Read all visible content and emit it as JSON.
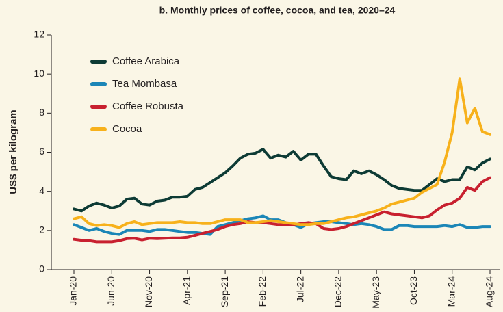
{
  "chart_data": {
    "type": "line",
    "title": "b. Monthly prices of coffee, cocoa, and tea, 2020–24",
    "y_label": "US$ per kilogram",
    "categories": [
      "Jan-20",
      null,
      null,
      null,
      null,
      "Jun-20",
      null,
      null,
      null,
      null,
      "Nov-20",
      null,
      null,
      null,
      null,
      "Apr-21",
      null,
      null,
      null,
      null,
      "Sep-21",
      null,
      null,
      null,
      null,
      "Feb-22",
      null,
      null,
      null,
      null,
      "Jul-22",
      null,
      null,
      null,
      null,
      "Dec-22",
      null,
      null,
      null,
      null,
      "May-23",
      null,
      null,
      null,
      null,
      "Oct-23",
      null,
      null,
      null,
      null,
      "Mar-24",
      null,
      null,
      null,
      null,
      "Aug-24"
    ],
    "series": [
      {
        "name": "Coffee Arabica",
        "color": "#0d3b35",
        "values": [
          3.1,
          3.0,
          3.25,
          3.4,
          3.3,
          3.15,
          3.25,
          3.6,
          3.65,
          3.35,
          3.3,
          3.5,
          3.55,
          3.7,
          3.7,
          3.75,
          4.1,
          4.2,
          4.45,
          4.7,
          4.95,
          5.3,
          5.7,
          5.9,
          5.95,
          6.15,
          5.7,
          5.85,
          5.75,
          6.05,
          5.6,
          5.9,
          5.9,
          5.3,
          4.75,
          4.65,
          4.6,
          5.05,
          4.9,
          5.05,
          4.85,
          4.6,
          4.3,
          4.15,
          4.1,
          4.05,
          4.05,
          4.35,
          4.65,
          4.5,
          4.6,
          4.6,
          5.25,
          5.1,
          5.45,
          5.65
        ]
      },
      {
        "name": "Tea Mombasa",
        "color": "#1b86b7",
        "values": [
          2.3,
          2.15,
          2.0,
          2.1,
          1.95,
          1.85,
          1.8,
          2.0,
          2.0,
          2.0,
          1.95,
          2.05,
          2.05,
          2.0,
          1.95,
          1.9,
          1.9,
          1.85,
          1.8,
          2.2,
          2.3,
          2.4,
          2.5,
          2.6,
          2.65,
          2.75,
          2.55,
          2.55,
          2.4,
          2.3,
          2.15,
          2.35,
          2.4,
          2.45,
          2.45,
          2.4,
          2.35,
          2.3,
          2.35,
          2.3,
          2.2,
          2.05,
          2.05,
          2.25,
          2.25,
          2.2,
          2.2,
          2.2,
          2.2,
          2.25,
          2.2,
          2.3,
          2.15,
          2.15,
          2.2,
          2.2
        ]
      },
      {
        "name": "Coffee Robusta",
        "color": "#c8202f",
        "values": [
          1.55,
          1.5,
          1.48,
          1.42,
          1.42,
          1.42,
          1.48,
          1.58,
          1.6,
          1.52,
          1.6,
          1.58,
          1.6,
          1.62,
          1.62,
          1.65,
          1.75,
          1.85,
          1.95,
          2.05,
          2.2,
          2.3,
          2.35,
          2.45,
          2.4,
          2.4,
          2.35,
          2.3,
          2.3,
          2.3,
          2.35,
          2.4,
          2.35,
          2.1,
          2.05,
          2.1,
          2.2,
          2.35,
          2.5,
          2.65,
          2.8,
          2.95,
          2.85,
          2.8,
          2.75,
          2.7,
          2.65,
          2.75,
          3.05,
          3.3,
          3.4,
          3.65,
          4.2,
          4.05,
          4.5,
          4.7
        ]
      },
      {
        "name": "Cocoa",
        "color": "#f7b11b",
        "values": [
          2.6,
          2.7,
          2.35,
          2.25,
          2.3,
          2.25,
          2.15,
          2.35,
          2.45,
          2.3,
          2.35,
          2.4,
          2.4,
          2.4,
          2.45,
          2.4,
          2.4,
          2.35,
          2.35,
          2.45,
          2.55,
          2.55,
          2.55,
          2.4,
          2.4,
          2.45,
          2.5,
          2.45,
          2.4,
          2.35,
          2.3,
          2.3,
          2.35,
          2.35,
          2.45,
          2.55,
          2.65,
          2.7,
          2.8,
          2.9,
          3.0,
          3.15,
          3.35,
          3.45,
          3.55,
          3.65,
          3.95,
          4.15,
          4.35,
          5.5,
          7.0,
          9.75,
          7.5,
          8.25,
          7.05,
          6.9
        ]
      }
    ],
    "ylim": [
      0,
      12
    ],
    "yticks": [
      0,
      2,
      4,
      6,
      8,
      10,
      12
    ],
    "legend": "upper left"
  }
}
